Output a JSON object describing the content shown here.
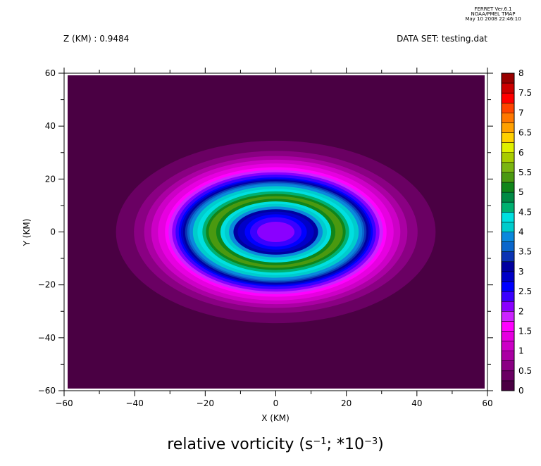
{
  "header": {
    "ferret_line1": "FERRET  Ver.6.1",
    "ferret_line2": "NOAA/PMEL TMAP",
    "ferret_line3": "May 10 2008 22:46:10",
    "z_label": "Z (KM) : 0.9484",
    "dataset_label": "DATA SET: testing.dat"
  },
  "chart_data": {
    "type": "heatmap",
    "title": "relative vorticity (s⁻¹; *10⁻³)",
    "title_parts": {
      "main": "relative vorticity (s",
      "sup1": "−1",
      "mid": "; *10",
      "sup2": "−3",
      "end": ")"
    },
    "xlabel": "X (KM)",
    "ylabel": "Y (KM)",
    "xlim": [
      -60,
      60
    ],
    "ylim": [
      -60,
      60
    ],
    "x_ticks": [
      "−60",
      "−40",
      "−20",
      "0",
      "20",
      "40",
      "60"
    ],
    "y_ticks": [
      "60",
      "40",
      "20",
      "0",
      "−20",
      "−40",
      "−60"
    ],
    "center": [
      0,
      0
    ],
    "contour_levels": [
      0,
      0.25,
      0.5,
      0.75,
      1,
      1.25,
      1.5,
      1.75,
      2,
      2.25,
      2.5,
      2.75,
      3,
      3.25,
      3.5,
      3.75,
      4,
      4.25,
      4.5,
      4.75,
      5,
      5.25,
      5.5,
      5.75,
      6,
      6.25,
      6.5,
      6.75,
      7,
      7.25,
      7.5,
      7.75,
      8
    ],
    "colorbar_labels": [
      "8",
      "7.5",
      "7",
      "6.5",
      "6",
      "5.5",
      "5",
      "4.5",
      "4",
      "3.5",
      "3",
      "2.5",
      "2",
      "1.5",
      "1",
      "0.5",
      "0"
    ],
    "colors": [
      "#4a0043",
      "#6a0063",
      "#8a0083",
      "#aa00a3",
      "#cc00c6",
      "#e600e0",
      "#ff00ff",
      "#cc22ff",
      "#8a00ff",
      "#3a00ff",
      "#0000ff",
      "#0000c8",
      "#0000a0",
      "#0a33b4",
      "#0a66cc",
      "#0a88dd",
      "#00cccc",
      "#00e0e0",
      "#00b070",
      "#008a45",
      "#10851a",
      "#4a9910",
      "#7ab510",
      "#a8cc00",
      "#e0f000",
      "#ffd000",
      "#ffa000",
      "#ff7700",
      "#ff4400",
      "#ff0000",
      "#cc0000",
      "#990000"
    ],
    "rings": [
      {
        "rx": 45.3,
        "ry": 34.1,
        "level": 0.25
      },
      {
        "rx": 40.2,
        "ry": 30.3,
        "level": 0.5
      },
      {
        "rx": 37.3,
        "ry": 28.4,
        "level": 0.75
      },
      {
        "rx": 35.3,
        "ry": 27.0,
        "level": 1.0
      },
      {
        "rx": 33.4,
        "ry": 25.6,
        "level": 1.25
      },
      {
        "rx": 31.4,
        "ry": 24.2,
        "level": 1.5
      },
      {
        "rx": 30.4,
        "ry": 23.2,
        "level": 1.75
      },
      {
        "rx": 29.4,
        "ry": 22.3,
        "level": 2.0
      },
      {
        "rx": 28.4,
        "ry": 21.4,
        "level": 2.25
      },
      {
        "rx": 27.5,
        "ry": 20.4,
        "level": 2.5
      },
      {
        "rx": 26.9,
        "ry": 19.9,
        "level": 2.75
      },
      {
        "rx": 26.3,
        "ry": 19.4,
        "level": 3.0
      },
      {
        "rx": 25.7,
        "ry": 19.0,
        "level": 3.25
      },
      {
        "rx": 25.1,
        "ry": 18.5,
        "level": 3.5
      },
      {
        "rx": 24.5,
        "ry": 18.0,
        "level": 3.75
      },
      {
        "rx": 23.5,
        "ry": 17.1,
        "level": 4.0
      },
      {
        "rx": 22.2,
        "ry": 16.1,
        "level": 4.25
      },
      {
        "rx": 20.8,
        "ry": 15.2,
        "level": 4.5
      },
      {
        "rx": 19.8,
        "ry": 14.2,
        "level": 5.0
      },
      {
        "rx": 19.0,
        "ry": 13.4,
        "level": 5.25
      },
      {
        "rx": 16.9,
        "ry": 12.4,
        "level": 5.0
      },
      {
        "rx": 15.7,
        "ry": 11.4,
        "level": 4.25
      },
      {
        "rx": 14.5,
        "ry": 10.5,
        "level": 4.0
      },
      {
        "rx": 13.3,
        "ry": 9.5,
        "level": 3.75
      },
      {
        "rx": 12.0,
        "ry": 8.5,
        "level": 3.0
      },
      {
        "rx": 10.8,
        "ry": 7.6,
        "level": 2.75
      },
      {
        "rx": 8.8,
        "ry": 6.6,
        "level": 2.5
      },
      {
        "rx": 7.3,
        "ry": 5.5,
        "level": 2.25
      },
      {
        "rx": 5.3,
        "ry": 3.8,
        "level": 2.0
      }
    ]
  }
}
